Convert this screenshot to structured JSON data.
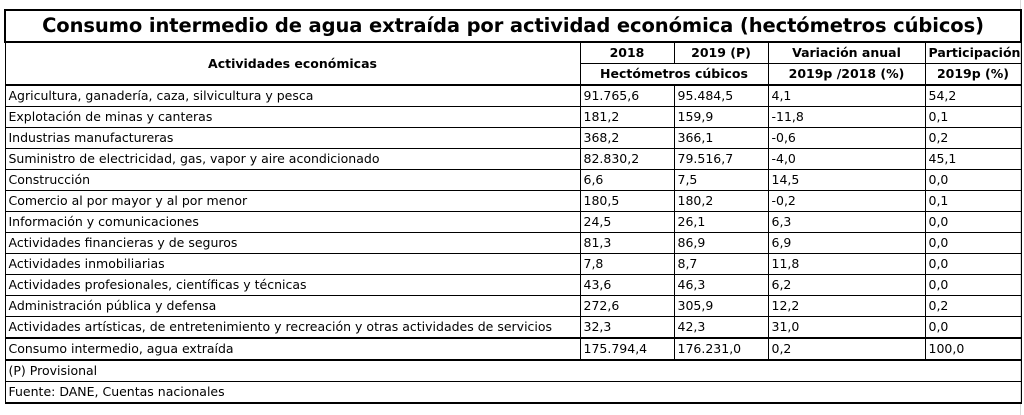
{
  "title": "Consumo intermedio de agua extraída por actividad económica (hectómetros cúbicos)",
  "headers": {
    "activity": "Actividades económicas",
    "year2018": "2018",
    "year2019": "2019 (P)",
    "units": "Hectómetros cúbicos",
    "variation": "Variación anual",
    "variation_sub": "2019p /2018 (%)",
    "share": "Participación",
    "share_sub": "2019p (%)"
  },
  "rows": [
    {
      "activity": "Agricultura, ganadería, caza, silvicultura y pesca",
      "v2018": "91.765,6",
      "v2019": "95.484,5",
      "var": "4,1",
      "share": "54,2"
    },
    {
      "activity": "Explotación de minas y canteras",
      "v2018": "181,2",
      "v2019": "159,9",
      "var": "-11,8",
      "share": "0,1"
    },
    {
      "activity": "Industrias manufactureras",
      "v2018": "368,2",
      "v2019": "366,1",
      "var": "-0,6",
      "share": "0,2"
    },
    {
      "activity": "Suministro de electricidad, gas, vapor y aire acondicionado",
      "v2018": "82.830,2",
      "v2019": "79.516,7",
      "var": "-4,0",
      "share": "45,1"
    },
    {
      "activity": "Construcción",
      "v2018": "6,6",
      "v2019": "7,5",
      "var": "14,5",
      "share": "0,0"
    },
    {
      "activity": "Comercio al por mayor y al por menor",
      "v2018": "180,5",
      "v2019": "180,2",
      "var": "-0,2",
      "share": "0,1"
    },
    {
      "activity": "Información y comunicaciones",
      "v2018": "24,5",
      "v2019": "26,1",
      "var": "6,3",
      "share": "0,0"
    },
    {
      "activity": "Actividades financieras y de seguros",
      "v2018": "81,3",
      "v2019": "86,9",
      "var": "6,9",
      "share": "0,0"
    },
    {
      "activity": "Actividades inmobiliarias",
      "v2018": "7,8",
      "v2019": "8,7",
      "var": "11,8",
      "share": "0,0"
    },
    {
      "activity": "Actividades profesionales, científicas y técnicas",
      "v2018": "43,6",
      "v2019": "46,3",
      "var": "6,2",
      "share": "0,0"
    },
    {
      "activity": "Administración pública y defensa",
      "v2018": "272,6",
      "v2019": "305,9",
      "var": "12,2",
      "share": "0,2"
    },
    {
      "activity": "Actividades artísticas, de entretenimiento y recreación y otras actividades de servicios",
      "v2018": "32,3",
      "v2019": "42,3",
      "var": "31,0",
      "share": "0,0"
    }
  ],
  "total": {
    "activity": "Consumo intermedio, agua extraída",
    "v2018": "175.794,4",
    "v2019": "176.231,0",
    "var": "0,2",
    "share": "100,0"
  },
  "notes": {
    "provisional": "(P) Provisional",
    "source": "Fuente: DANE, Cuentas nacionales"
  }
}
